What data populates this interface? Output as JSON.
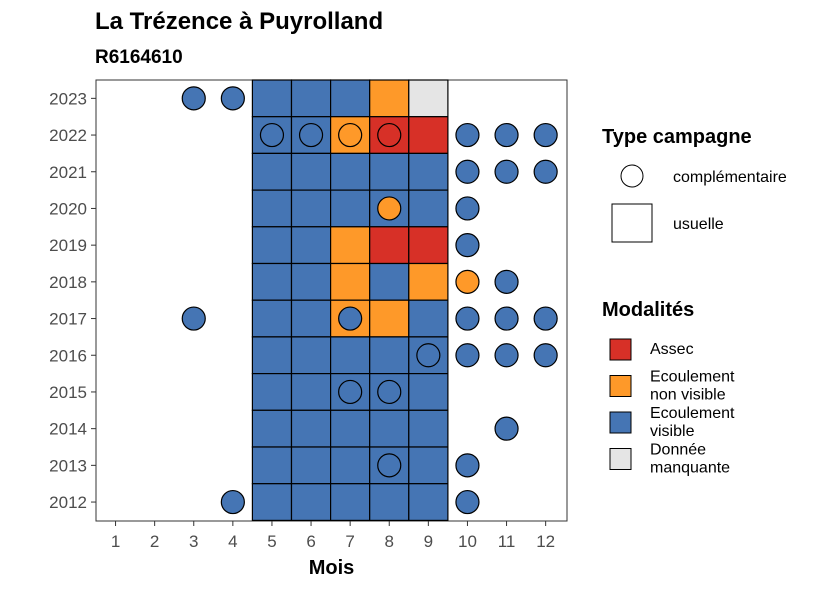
{
  "chart_data": {
    "type": "heatmap",
    "title": "La Trézence à Puyrolland",
    "subtitle": "R6164610",
    "xlabel": "Mois",
    "ylabel": "",
    "x_ticks": [
      "1",
      "2",
      "3",
      "4",
      "5",
      "6",
      "7",
      "8",
      "9",
      "10",
      "11",
      "12"
    ],
    "y_ticks": [
      "2012",
      "2013",
      "2014",
      "2015",
      "2016",
      "2017",
      "2018",
      "2019",
      "2020",
      "2021",
      "2022",
      "2023"
    ],
    "colors": {
      "Assec": "#d73027",
      "Ecoulement non visible": "#fe9929",
      "Ecoulement visible": "#4575b4",
      "Donnée manquante": "#e5e5e5"
    },
    "legend_shape": {
      "title": "Type campagne",
      "items": [
        "complémentaire",
        "usuelle"
      ]
    },
    "legend_fill": {
      "title": "Modalités",
      "items": [
        {
          "key": "Assec",
          "lines": [
            "Assec"
          ]
        },
        {
          "key": "Ecoulement non visible",
          "lines": [
            "Ecoulement",
            "non visible"
          ]
        },
        {
          "key": "Ecoulement visible",
          "lines": [
            "Ecoulement",
            "visible"
          ]
        },
        {
          "key": "Donnée manquante",
          "lines": [
            "Donnée",
            "manquante"
          ]
        }
      ]
    },
    "usuelle": [
      {
        "year": 2023,
        "month": 5,
        "m": "Ecoulement visible"
      },
      {
        "year": 2023,
        "month": 6,
        "m": "Ecoulement visible"
      },
      {
        "year": 2023,
        "month": 7,
        "m": "Ecoulement visible"
      },
      {
        "year": 2023,
        "month": 8,
        "m": "Ecoulement non visible"
      },
      {
        "year": 2023,
        "month": 9,
        "m": "Donnée manquante"
      },
      {
        "year": 2022,
        "month": 5,
        "m": "Ecoulement visible"
      },
      {
        "year": 2022,
        "month": 6,
        "m": "Ecoulement visible"
      },
      {
        "year": 2022,
        "month": 7,
        "m": "Ecoulement non visible"
      },
      {
        "year": 2022,
        "month": 8,
        "m": "Assec"
      },
      {
        "year": 2022,
        "month": 9,
        "m": "Assec"
      },
      {
        "year": 2021,
        "month": 5,
        "m": "Ecoulement visible"
      },
      {
        "year": 2021,
        "month": 6,
        "m": "Ecoulement visible"
      },
      {
        "year": 2021,
        "month": 7,
        "m": "Ecoulement visible"
      },
      {
        "year": 2021,
        "month": 8,
        "m": "Ecoulement visible"
      },
      {
        "year": 2021,
        "month": 9,
        "m": "Ecoulement visible"
      },
      {
        "year": 2020,
        "month": 5,
        "m": "Ecoulement visible"
      },
      {
        "year": 2020,
        "month": 6,
        "m": "Ecoulement visible"
      },
      {
        "year": 2020,
        "month": 7,
        "m": "Ecoulement visible"
      },
      {
        "year": 2020,
        "month": 8,
        "m": "Ecoulement visible"
      },
      {
        "year": 2020,
        "month": 9,
        "m": "Ecoulement visible"
      },
      {
        "year": 2019,
        "month": 5,
        "m": "Ecoulement visible"
      },
      {
        "year": 2019,
        "month": 6,
        "m": "Ecoulement visible"
      },
      {
        "year": 2019,
        "month": 7,
        "m": "Ecoulement non visible"
      },
      {
        "year": 2019,
        "month": 8,
        "m": "Assec"
      },
      {
        "year": 2019,
        "month": 9,
        "m": "Assec"
      },
      {
        "year": 2018,
        "month": 5,
        "m": "Ecoulement visible"
      },
      {
        "year": 2018,
        "month": 6,
        "m": "Ecoulement visible"
      },
      {
        "year": 2018,
        "month": 7,
        "m": "Ecoulement non visible"
      },
      {
        "year": 2018,
        "month": 8,
        "m": "Ecoulement visible"
      },
      {
        "year": 2018,
        "month": 9,
        "m": "Ecoulement non visible"
      },
      {
        "year": 2017,
        "month": 5,
        "m": "Ecoulement visible"
      },
      {
        "year": 2017,
        "month": 6,
        "m": "Ecoulement visible"
      },
      {
        "year": 2017,
        "month": 7,
        "m": "Ecoulement non visible"
      },
      {
        "year": 2017,
        "month": 8,
        "m": "Ecoulement non visible"
      },
      {
        "year": 2017,
        "month": 9,
        "m": "Ecoulement visible"
      },
      {
        "year": 2016,
        "month": 5,
        "m": "Ecoulement visible"
      },
      {
        "year": 2016,
        "month": 6,
        "m": "Ecoulement visible"
      },
      {
        "year": 2016,
        "month": 7,
        "m": "Ecoulement visible"
      },
      {
        "year": 2016,
        "month": 8,
        "m": "Ecoulement visible"
      },
      {
        "year": 2016,
        "month": 9,
        "m": "Ecoulement visible"
      },
      {
        "year": 2015,
        "month": 5,
        "m": "Ecoulement visible"
      },
      {
        "year": 2015,
        "month": 6,
        "m": "Ecoulement visible"
      },
      {
        "year": 2015,
        "month": 7,
        "m": "Ecoulement visible"
      },
      {
        "year": 2015,
        "month": 8,
        "m": "Ecoulement visible"
      },
      {
        "year": 2015,
        "month": 9,
        "m": "Ecoulement visible"
      },
      {
        "year": 2014,
        "month": 5,
        "m": "Ecoulement visible"
      },
      {
        "year": 2014,
        "month": 6,
        "m": "Ecoulement visible"
      },
      {
        "year": 2014,
        "month": 7,
        "m": "Ecoulement visible"
      },
      {
        "year": 2014,
        "month": 8,
        "m": "Ecoulement visible"
      },
      {
        "year": 2014,
        "month": 9,
        "m": "Ecoulement visible"
      },
      {
        "year": 2013,
        "month": 5,
        "m": "Ecoulement visible"
      },
      {
        "year": 2013,
        "month": 6,
        "m": "Ecoulement visible"
      },
      {
        "year": 2013,
        "month": 7,
        "m": "Ecoulement visible"
      },
      {
        "year": 2013,
        "month": 8,
        "m": "Ecoulement visible"
      },
      {
        "year": 2013,
        "month": 9,
        "m": "Ecoulement visible"
      },
      {
        "year": 2012,
        "month": 5,
        "m": "Ecoulement visible"
      },
      {
        "year": 2012,
        "month": 6,
        "m": "Ecoulement visible"
      },
      {
        "year": 2012,
        "month": 7,
        "m": "Ecoulement visible"
      },
      {
        "year": 2012,
        "month": 8,
        "m": "Ecoulement visible"
      },
      {
        "year": 2012,
        "month": 9,
        "m": "Ecoulement visible"
      }
    ],
    "complementaire": [
      {
        "year": 2023,
        "month": 3,
        "m": "Ecoulement visible"
      },
      {
        "year": 2023,
        "month": 4,
        "m": "Ecoulement visible"
      },
      {
        "year": 2022,
        "month": 5,
        "m": "Ecoulement visible"
      },
      {
        "year": 2022,
        "month": 6,
        "m": "Ecoulement visible"
      },
      {
        "year": 2022,
        "month": 7,
        "m": "Ecoulement non visible"
      },
      {
        "year": 2022,
        "month": 8,
        "m": "Assec"
      },
      {
        "year": 2022,
        "month": 10,
        "m": "Ecoulement visible"
      },
      {
        "year": 2022,
        "month": 11,
        "m": "Ecoulement visible"
      },
      {
        "year": 2022,
        "month": 12,
        "m": "Ecoulement visible"
      },
      {
        "year": 2021,
        "month": 10,
        "m": "Ecoulement visible"
      },
      {
        "year": 2021,
        "month": 11,
        "m": "Ecoulement visible"
      },
      {
        "year": 2021,
        "month": 12,
        "m": "Ecoulement visible"
      },
      {
        "year": 2020,
        "month": 8,
        "m": "Ecoulement non visible"
      },
      {
        "year": 2020,
        "month": 10,
        "m": "Ecoulement visible"
      },
      {
        "year": 2019,
        "month": 10,
        "m": "Ecoulement visible"
      },
      {
        "year": 2018,
        "month": 10,
        "m": "Ecoulement non visible"
      },
      {
        "year": 2018,
        "month": 11,
        "m": "Ecoulement visible"
      },
      {
        "year": 2017,
        "month": 3,
        "m": "Ecoulement visible"
      },
      {
        "year": 2017,
        "month": 7,
        "m": "Ecoulement visible"
      },
      {
        "year": 2017,
        "month": 10,
        "m": "Ecoulement visible"
      },
      {
        "year": 2017,
        "month": 11,
        "m": "Ecoulement visible"
      },
      {
        "year": 2017,
        "month": 12,
        "m": "Ecoulement visible"
      },
      {
        "year": 2016,
        "month": 9,
        "m": "Ecoulement visible"
      },
      {
        "year": 2016,
        "month": 10,
        "m": "Ecoulement visible"
      },
      {
        "year": 2016,
        "month": 11,
        "m": "Ecoulement visible"
      },
      {
        "year": 2016,
        "month": 12,
        "m": "Ecoulement visible"
      },
      {
        "year": 2015,
        "month": 7,
        "m": "Ecoulement visible"
      },
      {
        "year": 2015,
        "month": 8,
        "m": "Ecoulement visible"
      },
      {
        "year": 2014,
        "month": 11,
        "m": "Ecoulement visible"
      },
      {
        "year": 2013,
        "month": 8,
        "m": "Ecoulement visible"
      },
      {
        "year": 2013,
        "month": 10,
        "m": "Ecoulement visible"
      },
      {
        "year": 2012,
        "month": 4,
        "m": "Ecoulement visible"
      },
      {
        "year": 2012,
        "month": 10,
        "m": "Ecoulement visible"
      }
    ]
  }
}
